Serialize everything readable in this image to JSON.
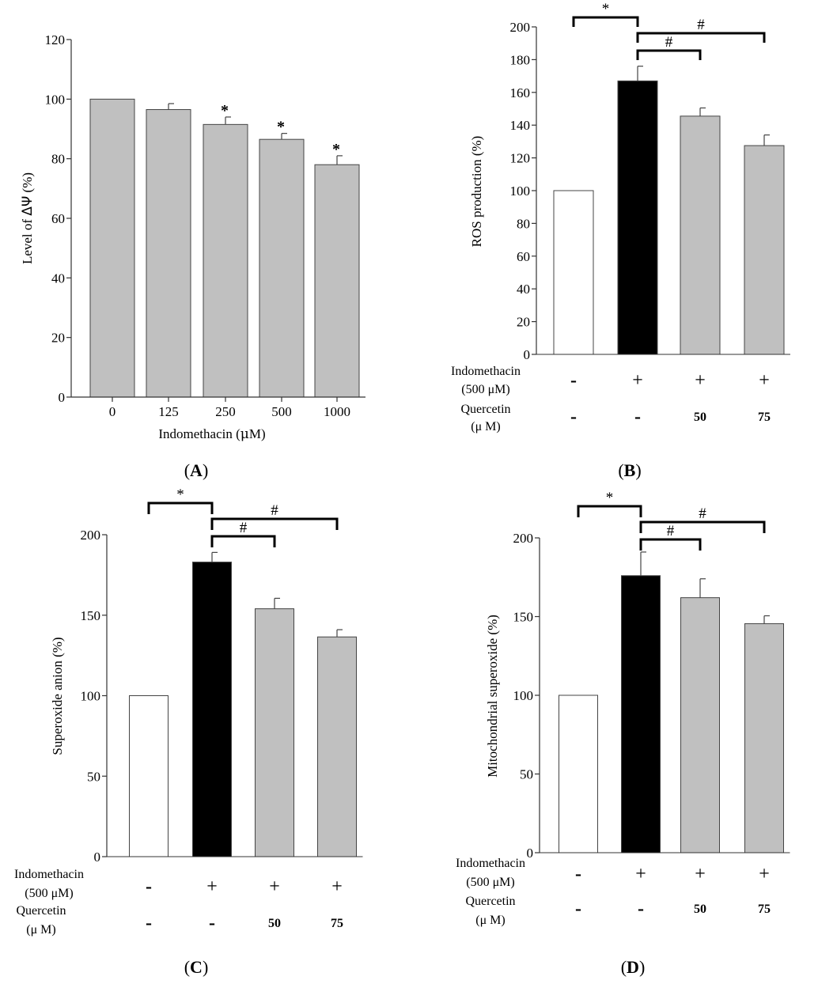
{
  "colors": {
    "grey_bar": "#c0c0c0",
    "black_bar": "#000000",
    "white_bar": "#ffffff",
    "outline": "#444444"
  },
  "chart_data": [
    {
      "panel": "A",
      "type": "bar",
      "title": "",
      "xlabel_pre": "Indomethacin (",
      "xlabel_mu": "μ",
      "xlabel_post": "M)",
      "ylabel_pre": "Level of ",
      "ylabel_sym": "ΔΨ",
      "ylabel_post": " (%)",
      "ylim": [
        0,
        120
      ],
      "yticks": [
        0,
        20,
        40,
        60,
        80,
        100,
        120
      ],
      "categories": [
        "0",
        "125",
        "250",
        "500",
        "1000"
      ],
      "values": [
        100,
        96.5,
        91.5,
        86.5,
        78
      ],
      "errors": [
        0,
        2,
        2.5,
        2,
        3
      ],
      "fills": [
        "grey",
        "grey",
        "grey",
        "grey",
        "grey"
      ],
      "stars": [
        "",
        "",
        "*",
        "*",
        "*"
      ]
    },
    {
      "panel": "B",
      "type": "bar",
      "title": "",
      "ylabel": "ROS production (%)",
      "ylim": [
        0,
        200
      ],
      "yticks": [
        0,
        20,
        40,
        60,
        80,
        100,
        120,
        140,
        160,
        180,
        200
      ],
      "values": [
        100,
        167,
        145.5,
        127.5
      ],
      "errors": [
        0,
        9,
        5,
        6.5
      ],
      "fills": [
        "white",
        "black",
        "grey",
        "grey"
      ],
      "indomethacin": [
        "-",
        "+",
        "+",
        "+"
      ],
      "quercetin": [
        "-",
        "-",
        "50",
        "75"
      ],
      "brackets": [
        {
          "from": 0,
          "to": 1,
          "symbol": "*"
        },
        {
          "from": 1,
          "to": 2,
          "symbol": "#"
        },
        {
          "from": 1,
          "to": 3,
          "symbol": "#"
        }
      ]
    },
    {
      "panel": "C",
      "type": "bar",
      "title": "",
      "ylabel": "Superoxide anion (%)",
      "ylim": [
        0,
        200
      ],
      "yticks": [
        0,
        50,
        100,
        150,
        200
      ],
      "values": [
        100,
        183,
        154,
        136.5
      ],
      "errors": [
        0,
        6,
        6.5,
        4.5
      ],
      "fills": [
        "white",
        "black",
        "grey",
        "grey"
      ],
      "indomethacin": [
        "-",
        "+",
        "+",
        "+"
      ],
      "quercetin": [
        "-",
        "-",
        "50",
        "75"
      ],
      "brackets": [
        {
          "from": 0,
          "to": 1,
          "symbol": "*"
        },
        {
          "from": 1,
          "to": 2,
          "symbol": "#"
        },
        {
          "from": 1,
          "to": 3,
          "symbol": "#"
        }
      ]
    },
    {
      "panel": "D",
      "type": "bar",
      "title": "",
      "ylabel": "Mitochondrial superoxide (%)",
      "ylim": [
        0,
        200
      ],
      "yticks": [
        0,
        50,
        100,
        150,
        200
      ],
      "values": [
        100,
        176,
        162,
        145.5
      ],
      "errors": [
        0,
        15,
        12,
        5
      ],
      "fills": [
        "white",
        "black",
        "grey",
        "grey"
      ],
      "indomethacin": [
        "-",
        "+",
        "+",
        "+"
      ],
      "quercetin": [
        "-",
        "-",
        "50",
        "75"
      ],
      "brackets": [
        {
          "from": 0,
          "to": 1,
          "symbol": "*"
        },
        {
          "from": 1,
          "to": 2,
          "symbol": "#"
        },
        {
          "from": 1,
          "to": 3,
          "symbol": "#"
        }
      ]
    }
  ],
  "row_labels": {
    "indomethacin": "Indomethacin",
    "indomethacin_dose_pre": "(500 ",
    "indomethacin_dose_mu": "μ",
    "indomethacin_dose_post": "M)",
    "quercetin": "Quercetin",
    "quercetin_unit_pre": "(",
    "quercetin_unit_mu": "μ",
    "quercetin_unit_post": " M)"
  },
  "panel_labels": {
    "open": "(",
    "close": ")",
    "A": "A",
    "B": "B",
    "C": "C",
    "D": "D"
  }
}
